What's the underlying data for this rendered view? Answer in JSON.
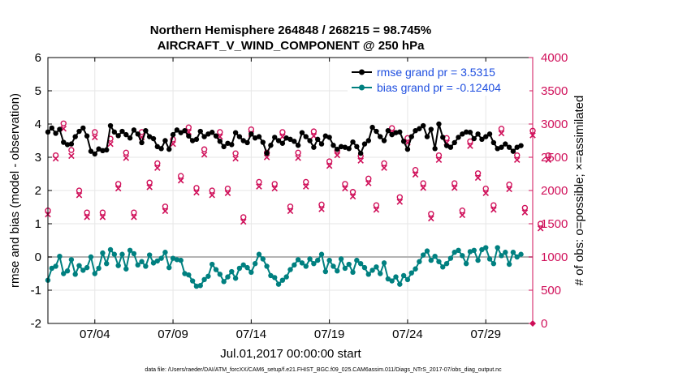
{
  "chart_data": {
    "type": "line",
    "title_line1": "Northern Hemisphere 264848 / 268215 = 98.745%",
    "title_line2": "AIRCRAFT_V_WIND_COMPONENT @ 250 hPa",
    "ylabel_left": "rmse and bias (model - observation)",
    "ylabel_right": "# of obs: o=possible; ×=assimilated",
    "xlabel": "Jul.01,2017 00:00:00 start",
    "footnote": "data file: /Users/raeder/DAI/ATM_forcXX/CAM6_setup/f.e21.FHIST_BGC.f09_025.CAM6assim.011/Diags_NTrS_2017-07/obs_diag_output.nc",
    "xlim": [
      1.0,
      32.0
    ],
    "ylim_left": [
      -2,
      6
    ],
    "ylim_right": [
      0,
      4000
    ],
    "xticks": [
      4,
      9,
      14,
      19,
      24,
      29
    ],
    "xtick_labels": [
      "07/04",
      "07/09",
      "07/14",
      "07/19",
      "07/24",
      "07/29"
    ],
    "yticks_left": [
      -2,
      -1,
      0,
      1,
      2,
      3,
      4,
      5,
      6
    ],
    "yticks_right": [
      0,
      500,
      1000,
      1500,
      2000,
      2500,
      3000,
      3500,
      4000
    ],
    "grid": true,
    "legend_position": "top-right",
    "colors": {
      "rmse": "#000000",
      "bias": "#008080",
      "obs": "#d0105a",
      "right_axis": "#d0105a",
      "zero_line": "#b4b4b4",
      "legend_text": "#1f4fe0"
    },
    "series": [
      {
        "name": "rmse grand pr = 3.5315",
        "axis": "left",
        "x_start": 1.0,
        "x_step": 0.25,
        "values": [
          3.76,
          3.88,
          3.72,
          3.84,
          3.45,
          3.38,
          3.4,
          3.62,
          3.78,
          3.88,
          3.64,
          3.18,
          3.1,
          3.25,
          3.2,
          3.22,
          3.95,
          3.76,
          3.65,
          3.78,
          3.68,
          3.58,
          3.82,
          3.7,
          3.44,
          3.8,
          3.62,
          3.56,
          3.32,
          3.26,
          3.5,
          3.24,
          3.68,
          3.82,
          3.74,
          3.8,
          3.64,
          3.5,
          3.54,
          3.78,
          3.62,
          3.7,
          3.75,
          3.64,
          3.48,
          3.32,
          3.42,
          3.38,
          3.74,
          3.62,
          3.5,
          3.44,
          3.7,
          3.58,
          3.62,
          3.45,
          3.12,
          3.36,
          3.6,
          3.5,
          3.42,
          3.58,
          3.54,
          3.48,
          3.36,
          3.74,
          3.62,
          3.5,
          3.3,
          3.54,
          3.4,
          3.64,
          3.6,
          3.36,
          3.24,
          3.32,
          3.3,
          3.26,
          3.46,
          3.32,
          3.12,
          3.4,
          3.5,
          3.9,
          3.78,
          3.62,
          3.5,
          3.8,
          3.68,
          3.74,
          3.76,
          3.48,
          3.24,
          3.62,
          3.8,
          3.86,
          3.95,
          3.62,
          3.84,
          3.26,
          4.0,
          3.6,
          3.35,
          3.3,
          3.44,
          3.6,
          3.7,
          3.76,
          3.75,
          3.56,
          3.7,
          3.54,
          3.62,
          3.7,
          3.44,
          3.26,
          3.3,
          3.4,
          3.3,
          3.18,
          3.3,
          3.35
        ]
      },
      {
        "name": "bias grand pr = -0.12404",
        "axis": "left",
        "x_start": 1.0,
        "x_step": 0.25,
        "values": [
          -0.7,
          -0.34,
          -0.28,
          0.02,
          -0.5,
          -0.42,
          -0.08,
          -0.52,
          -0.26,
          -0.4,
          -0.32,
          0.0,
          -0.5,
          -0.34,
          0.12,
          -0.2,
          0.22,
          0.08,
          -0.26,
          0.08,
          -0.36,
          0.2,
          0.1,
          -0.24,
          -0.14,
          -0.28,
          0.06,
          -0.18,
          -0.12,
          -0.04,
          0.14,
          -0.32,
          -0.04,
          -0.08,
          -0.1,
          -0.5,
          -0.54,
          -0.72,
          -0.88,
          -0.86,
          -0.68,
          -0.58,
          -0.22,
          -0.38,
          -0.52,
          -0.74,
          -0.6,
          -0.44,
          -0.64,
          -0.34,
          -0.24,
          -0.32,
          -0.46,
          -0.2,
          0.08,
          -0.06,
          -0.28,
          -0.56,
          -0.62,
          -0.82,
          -0.7,
          -0.6,
          -0.38,
          -0.24,
          -0.08,
          -0.18,
          -0.28,
          -0.06,
          -0.2,
          -0.1,
          0.08,
          -0.44,
          -0.1,
          -0.28,
          -0.42,
          -0.06,
          -0.34,
          -0.22,
          -0.46,
          -0.1,
          -0.2,
          -0.32,
          -0.52,
          -0.4,
          -0.3,
          -0.5,
          -0.18,
          -0.66,
          -0.72,
          -0.6,
          -0.82,
          -0.56,
          -0.68,
          -0.48,
          -0.36,
          -0.14,
          0.06,
          0.18,
          -0.1,
          0.02,
          -0.14,
          -0.3,
          -0.2,
          -0.04,
          0.14,
          0.2,
          0.04,
          -0.2,
          0.16,
          0.2,
          -0.1,
          0.22,
          0.28,
          -0.06,
          -0.2,
          0.28,
          0.04,
          0.14,
          -0.22,
          0.14,
          0.0,
          0.08
        ]
      },
      {
        "name": "obs possible",
        "axis": "right",
        "marker": "circle",
        "x_start": 1.0,
        "x_step": 0.5,
        "values": [
          1650,
          2480,
          2960,
          2560,
          1950,
          1620,
          2830,
          1620,
          2730,
          2050,
          2520,
          1620,
          2830,
          2070,
          2360,
          1710,
          2720,
          2170,
          2900,
          1990,
          2570,
          1950,
          2830,
          1980,
          2510,
          1550,
          2870,
          2080,
          2520,
          2050,
          2830,
          1710,
          2520,
          2080,
          2840,
          1740,
          2390,
          2550,
          2050,
          1930,
          2470,
          2130,
          1730,
          2360,
          2890,
          1850,
          2740,
          2260,
          2060,
          1600,
          2480,
          2740,
          2060,
          1650,
          2690,
          2210,
          1980,
          1730,
          2880,
          2040,
          2480,
          1690,
          2850,
          1450,
          2480
        ]
      },
      {
        "name": "obs assimilated",
        "axis": "right",
        "marker": "x",
        "x_start": 1.0,
        "x_step": 0.5,
        "values": [
          1640,
          2480,
          2930,
          2520,
          1930,
          1600,
          2800,
          1600,
          2700,
          2030,
          2490,
          1600,
          2800,
          2050,
          2340,
          1690,
          2700,
          2150,
          2880,
          1970,
          2540,
          1930,
          2810,
          1960,
          2480,
          1530,
          2850,
          2060,
          2500,
          2030,
          2810,
          1690,
          2490,
          2060,
          2820,
          1720,
          2370,
          2530,
          2030,
          1910,
          2450,
          2110,
          1710,
          2340,
          2870,
          1830,
          2720,
          2240,
          2040,
          1580,
          2460,
          2720,
          2040,
          1630,
          2670,
          2190,
          1960,
          1710,
          2860,
          2020,
          2460,
          1670,
          2830,
          1430,
          2460
        ]
      }
    ],
    "annotations": [
      {
        "text": "0",
        "x": 32.0,
        "axis": "right",
        "value": 0
      }
    ]
  }
}
